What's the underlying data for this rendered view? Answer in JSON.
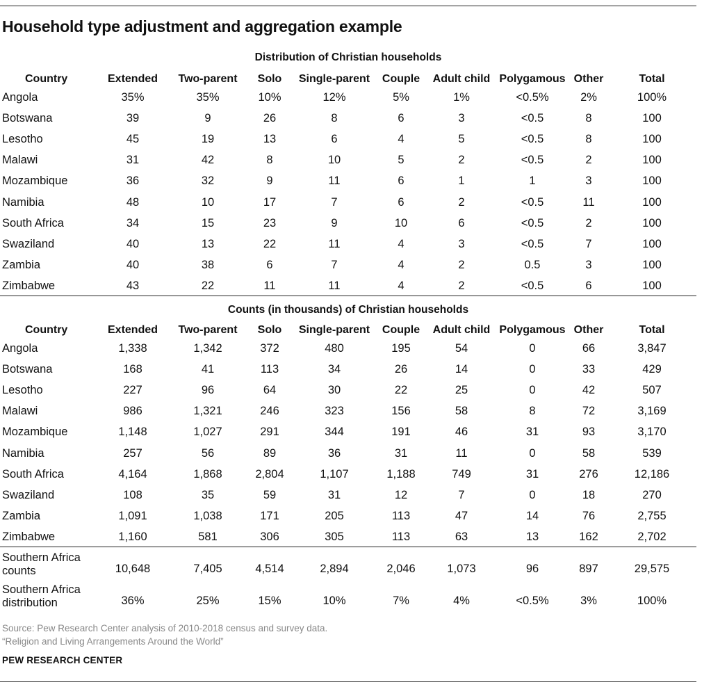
{
  "title": "Household type adjustment and aggregation example",
  "columns": [
    "Country",
    "Extended",
    "Two-parent",
    "Solo",
    "Single-parent",
    "Couple",
    "Adult child",
    "Polygamous",
    "Other",
    "Total"
  ],
  "distribution_section": {
    "title": "Distribution of Christian households",
    "rows": [
      [
        "Angola",
        "35%",
        "35%",
        "10%",
        "12%",
        "5%",
        "1%",
        "<0.5%",
        "2%",
        "100%"
      ],
      [
        "Botswana",
        "39",
        "9",
        "26",
        "8",
        "6",
        "3",
        "<0.5",
        "8",
        "100"
      ],
      [
        "Lesotho",
        "45",
        "19",
        "13",
        "6",
        "4",
        "5",
        "<0.5",
        "8",
        "100"
      ],
      [
        "Malawi",
        "31",
        "42",
        "8",
        "10",
        "5",
        "2",
        "<0.5",
        "2",
        "100"
      ],
      [
        "Mozambique",
        "36",
        "32",
        "9",
        "11",
        "6",
        "1",
        "1",
        "3",
        "100"
      ],
      [
        "Namibia",
        "48",
        "10",
        "17",
        "7",
        "6",
        "2",
        "<0.5",
        "11",
        "100"
      ],
      [
        "South Africa",
        "34",
        "15",
        "23",
        "9",
        "10",
        "6",
        "<0.5",
        "2",
        "100"
      ],
      [
        "Swaziland",
        "40",
        "13",
        "22",
        "11",
        "4",
        "3",
        "<0.5",
        "7",
        "100"
      ],
      [
        "Zambia",
        "40",
        "38",
        "6",
        "7",
        "4",
        "2",
        "0.5",
        "3",
        "100"
      ],
      [
        "Zimbabwe",
        "43",
        "22",
        "11",
        "11",
        "4",
        "2",
        "<0.5",
        "6",
        "100"
      ]
    ]
  },
  "counts_section": {
    "title": "Counts (in thousands) of Christian households",
    "rows": [
      [
        "Angola",
        "1,338",
        "1,342",
        "372",
        "480",
        "195",
        "54",
        "0",
        "66",
        "3,847"
      ],
      [
        "Botswana",
        "168",
        "41",
        "113",
        "34",
        "26",
        "14",
        "0",
        "33",
        "429"
      ],
      [
        "Lesotho",
        "227",
        "96",
        "64",
        "30",
        "22",
        "25",
        "0",
        "42",
        "507"
      ],
      [
        "Malawi",
        "986",
        "1,321",
        "246",
        "323",
        "156",
        "58",
        "8",
        "72",
        "3,169"
      ],
      [
        "Mozambique",
        "1,148",
        "1,027",
        "291",
        "344",
        "191",
        "46",
        "31",
        "93",
        "3,170"
      ],
      [
        "Namibia",
        "257",
        "56",
        "89",
        "36",
        "31",
        "11",
        "0",
        "58",
        "539"
      ],
      [
        "South Africa",
        "4,164",
        "1,868",
        "2,804",
        "1,107",
        "1,188",
        "749",
        "31",
        "276",
        "12,186"
      ],
      [
        "Swaziland",
        "108",
        "35",
        "59",
        "31",
        "12",
        "7",
        "0",
        "18",
        "270"
      ],
      [
        "Zambia",
        "1,091",
        "1,038",
        "171",
        "205",
        "113",
        "47",
        "14",
        "76",
        "2,755"
      ],
      [
        "Zimbabwe",
        "1,160",
        "581",
        "306",
        "305",
        "113",
        "63",
        "13",
        "162",
        "2,702"
      ]
    ],
    "aggregate_rows": [
      [
        "Southern Africa counts",
        "10,648",
        "7,405",
        "4,514",
        "2,894",
        "2,046",
        "1,073",
        "96",
        "897",
        "29,575"
      ],
      [
        "Southern Africa distribution",
        "36%",
        "25%",
        "15%",
        "10%",
        "7%",
        "4%",
        "<0.5%",
        "3%",
        "100%"
      ]
    ]
  },
  "source": "Source: Pew Research Center analysis of 2010-2018 census and survey data.",
  "report": "“Religion and Living Arrangements Around the World”",
  "brand": "PEW RESEARCH CENTER",
  "colors": {
    "text": "#111111",
    "rule": "#222222",
    "note": "#888888",
    "background": "#ffffff"
  }
}
